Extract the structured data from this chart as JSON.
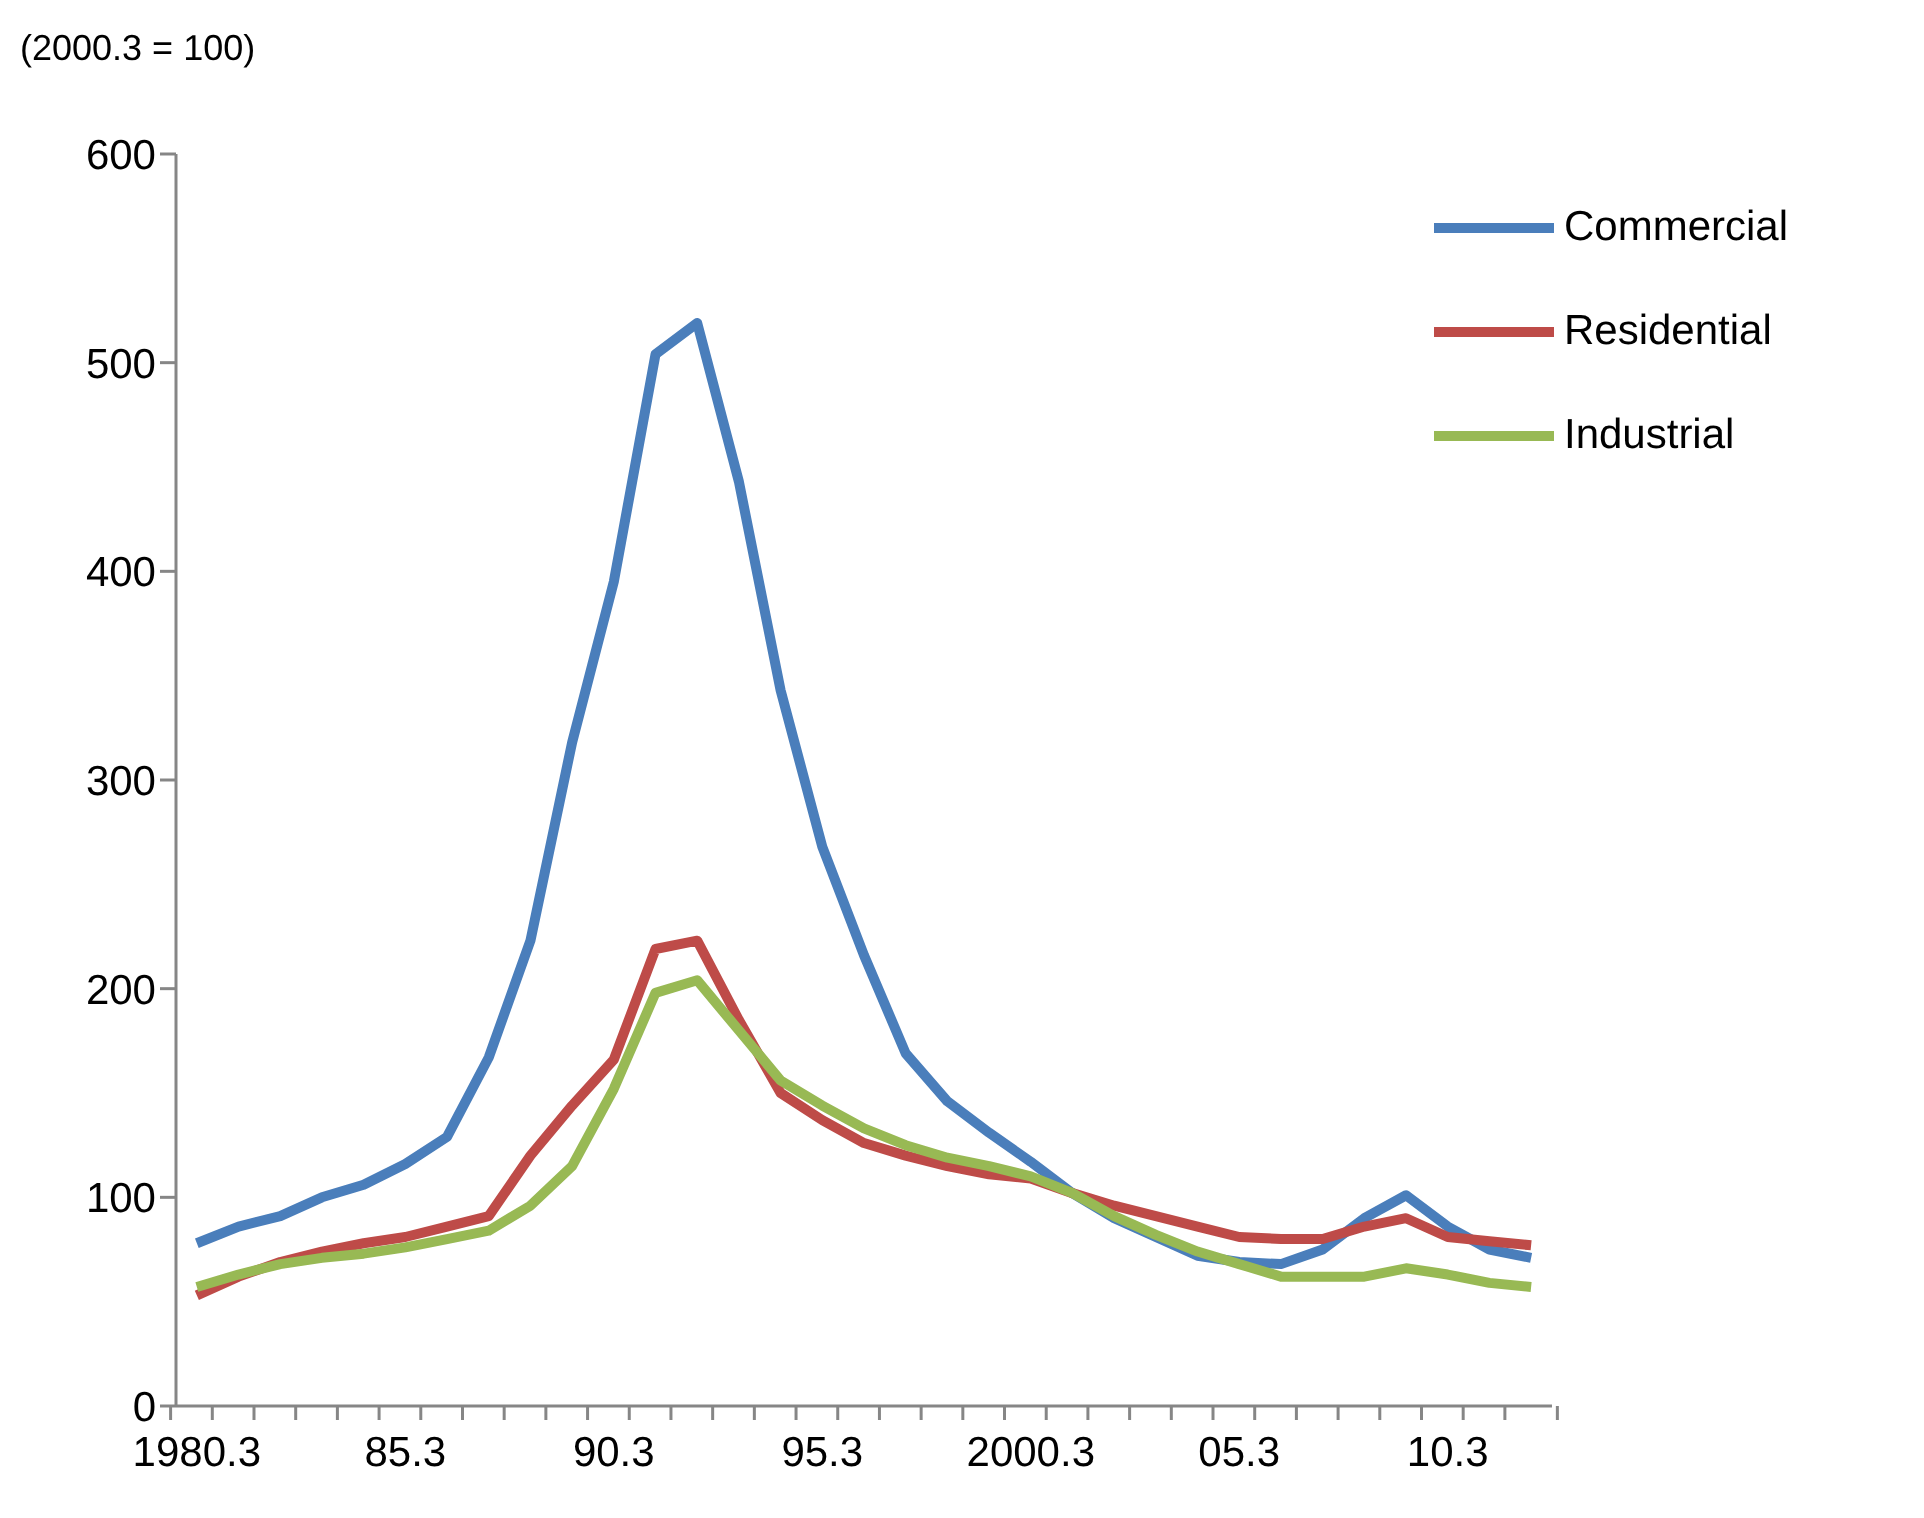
{
  "chart_data": {
    "type": "line",
    "annotations": [
      "(2000.3 = 100)"
    ],
    "categories": [
      "1980.3",
      null,
      null,
      null,
      null,
      "85.3",
      null,
      null,
      null,
      null,
      "90.3",
      null,
      null,
      null,
      null,
      "95.3",
      null,
      null,
      null,
      null,
      "2000.3",
      null,
      null,
      null,
      null,
      "05.3",
      null,
      null,
      null,
      null,
      "10.3",
      null,
      null
    ],
    "series": [
      {
        "name": "Commercial",
        "color": "#4a7ebb",
        "values": [
          78,
          86,
          91,
          100,
          106,
          116,
          129,
          167,
          223,
          318,
          395,
          504,
          519,
          443,
          343,
          268,
          216,
          169,
          146,
          131,
          117,
          102,
          90,
          81,
          72,
          69,
          68,
          75,
          90,
          101,
          86,
          75,
          71
        ]
      },
      {
        "name": "Residential",
        "color": "#be4b48",
        "values": [
          53,
          62,
          69,
          74,
          78,
          81,
          86,
          91,
          120,
          144,
          166,
          219,
          223,
          185,
          150,
          137,
          126,
          120,
          115,
          111,
          109,
          102,
          96,
          91,
          86,
          81,
          80,
          80,
          86,
          90,
          81,
          79,
          77
        ]
      },
      {
        "name": "Industrial",
        "color": "#98b954",
        "values": [
          57,
          63,
          68,
          71,
          73,
          76,
          80,
          84,
          96,
          115,
          152,
          198,
          204,
          180,
          156,
          144,
          133,
          125,
          119,
          115,
          110,
          102,
          91,
          82,
          74,
          68,
          62,
          62,
          62,
          66,
          63,
          59,
          57
        ]
      }
    ],
    "ylim": [
      0,
      600
    ],
    "yticks": [
      0,
      100,
      200,
      300,
      400,
      500,
      600
    ],
    "grid": false,
    "legend": "top right",
    "marker": "none",
    "line_style": "solid"
  }
}
